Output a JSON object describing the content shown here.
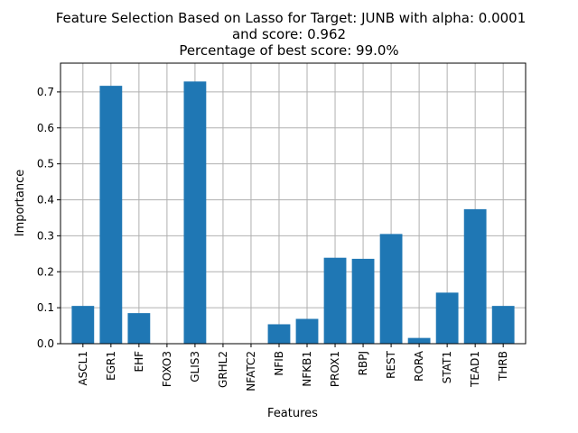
{
  "figure": {
    "title_lines": [
      "Feature Selection Based on Lasso for Target: JUNB with alpha: 0.0001",
      "and score: 0.962",
      "Percentage of best score: 99.0%"
    ]
  },
  "chart_data": {
    "type": "bar",
    "title": "Feature Selection Based on Lasso for Target: JUNB with alpha: 0.0001\nand score: 0.962\nPercentage of best score: 99.0%",
    "xlabel": "Features",
    "ylabel": "Importance",
    "categories": [
      "ASCL1",
      "EGR1",
      "EHF",
      "FOXO3",
      "GLIS3",
      "GRHL2",
      "NFATC2",
      "NFIB",
      "NFKB1",
      "PROX1",
      "RBPJ",
      "REST",
      "RORA",
      "STAT1",
      "TEAD1",
      "THRB"
    ],
    "values": [
      0.105,
      0.717,
      0.085,
      0.0,
      0.729,
      0.0,
      0.0,
      0.054,
      0.069,
      0.239,
      0.236,
      0.305,
      0.016,
      0.142,
      0.374,
      0.105
    ],
    "ylim": [
      0,
      0.78
    ],
    "yticks": [
      0.0,
      0.1,
      0.2,
      0.3,
      0.4,
      0.5,
      0.6,
      0.7
    ],
    "ytick_labels": [
      "0.0",
      "0.1",
      "0.2",
      "0.3",
      "0.4",
      "0.5",
      "0.6",
      "0.7"
    ],
    "grid": true,
    "bar_color": "#1f77b4",
    "grid_color": "#b0b0b0"
  }
}
